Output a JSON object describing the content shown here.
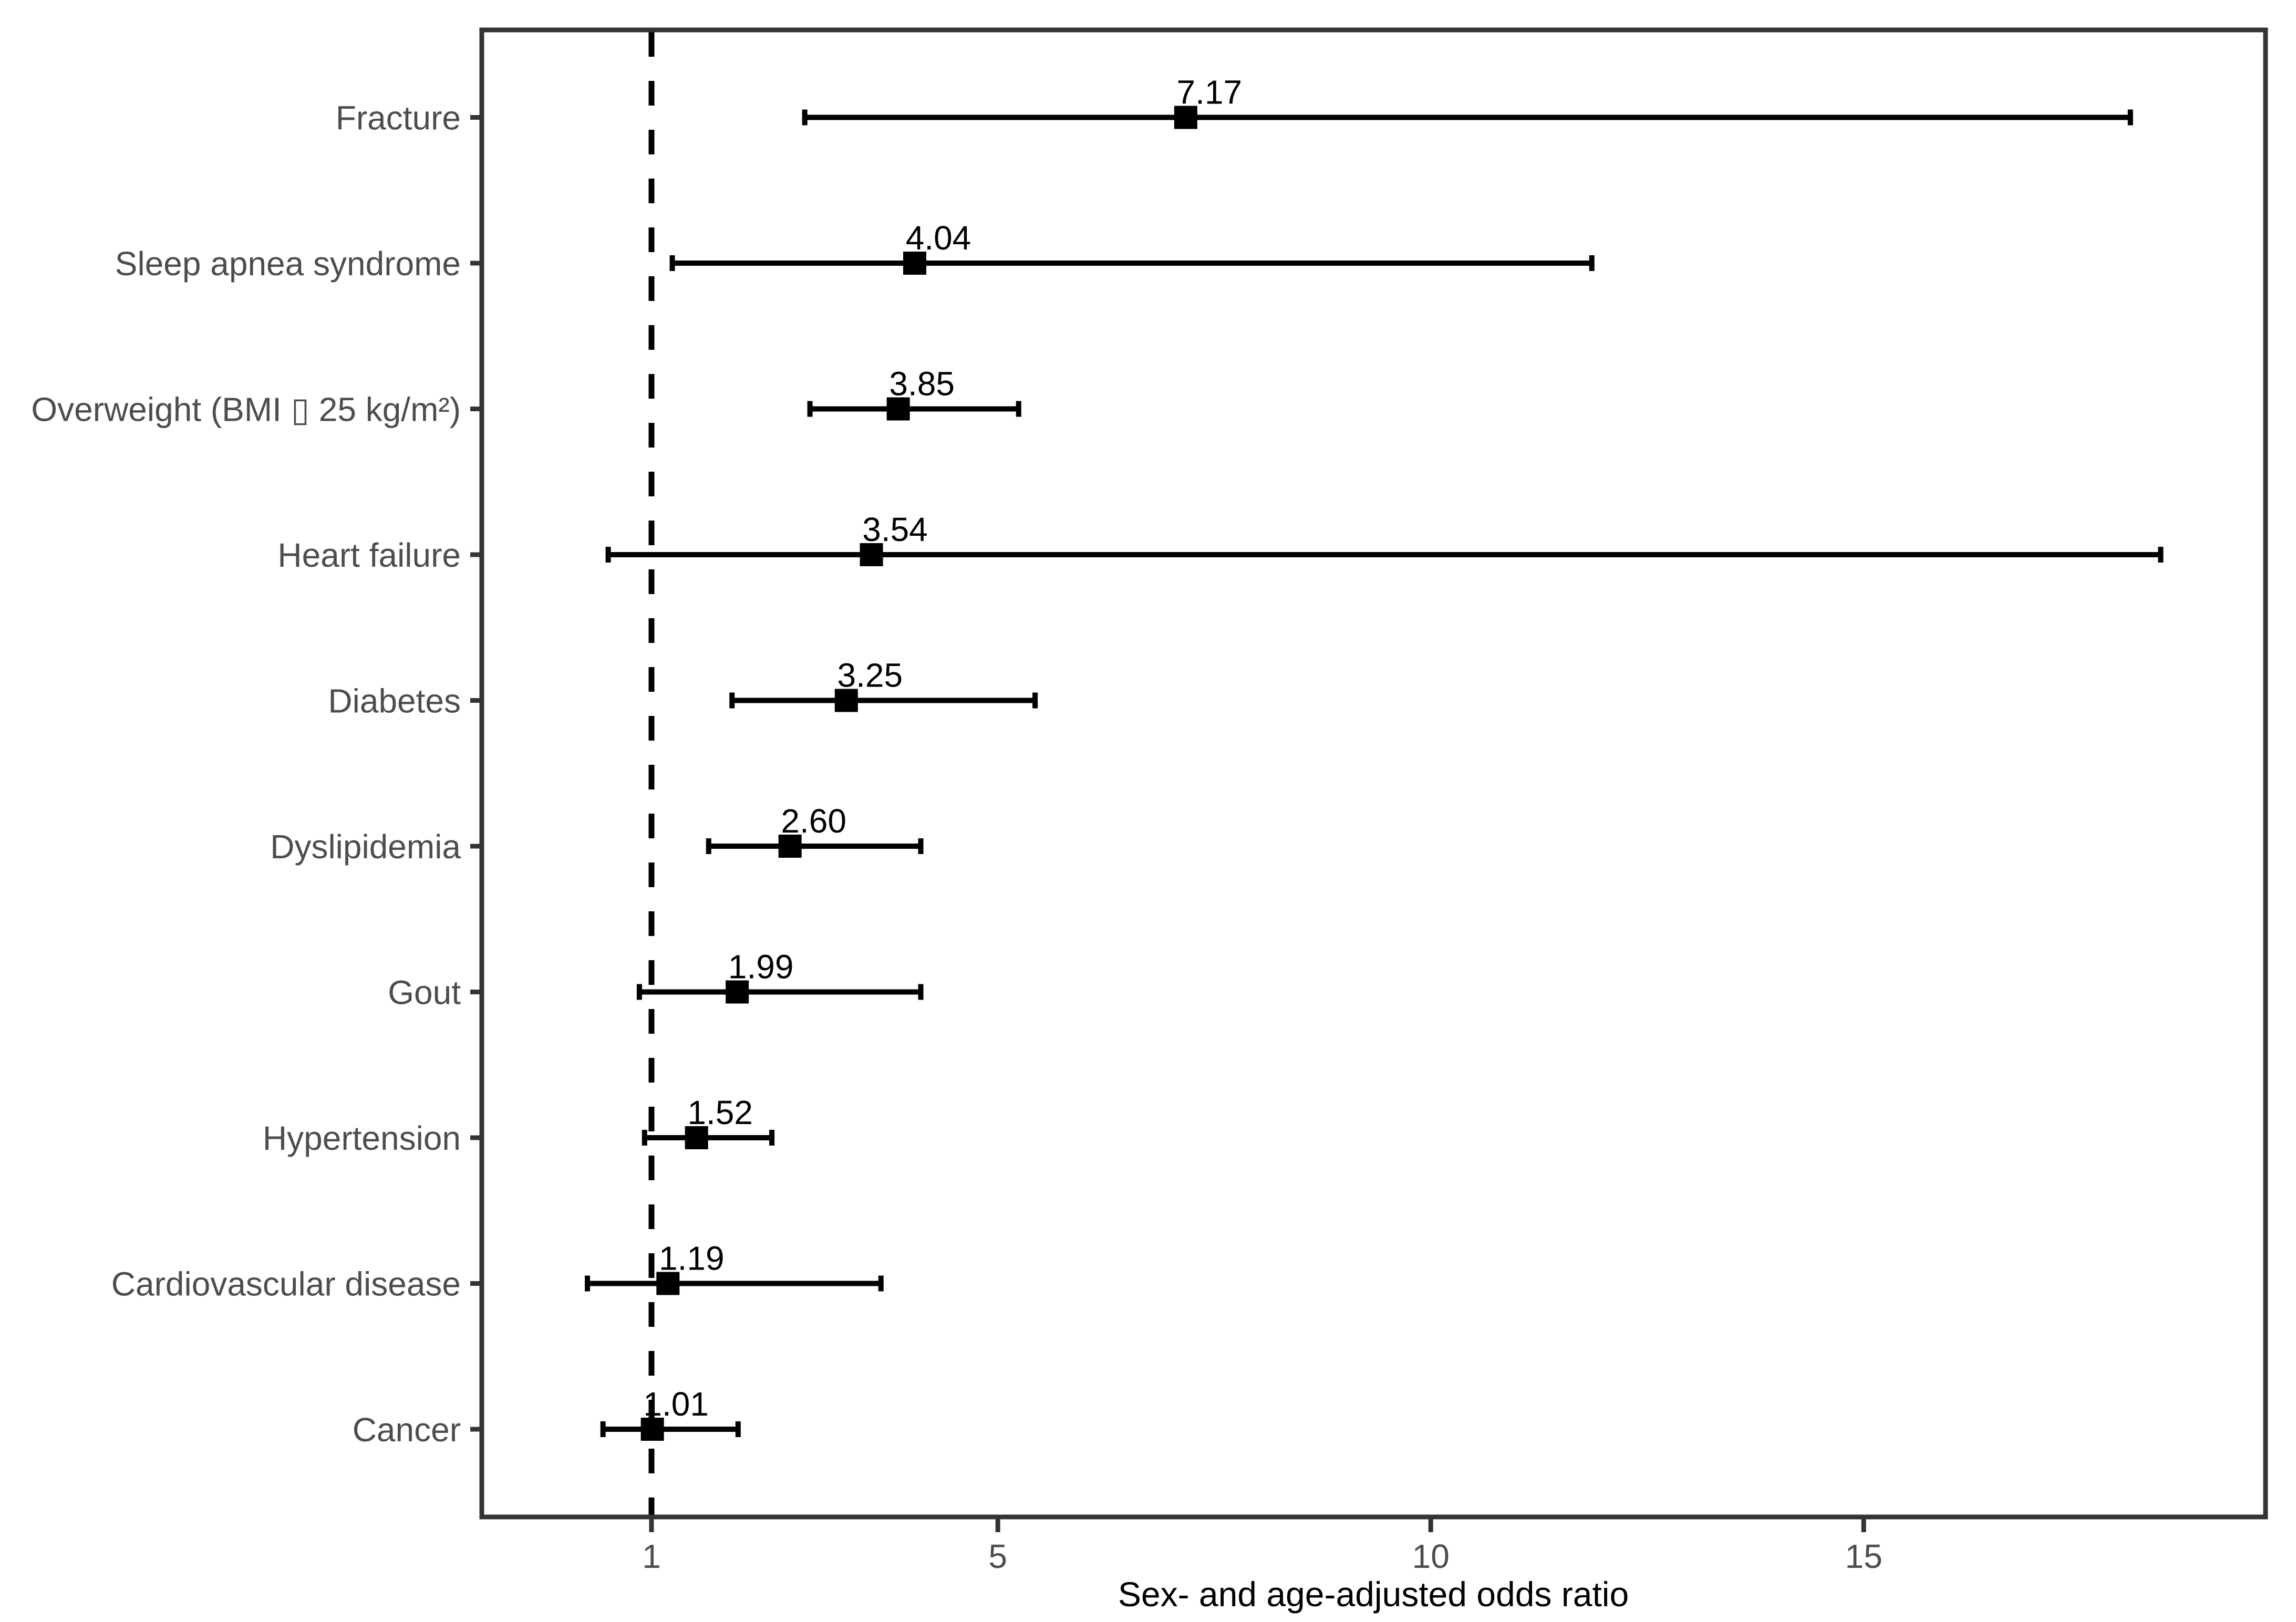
{
  "chart_data": {
    "type": "scatter",
    "subtype": "forest-plot",
    "title": "",
    "xlabel": "Sex- and age-adjusted odds ratio",
    "ylabel": "",
    "legend": "none",
    "grid": false,
    "xlim": [
      -0.9,
      19.6
    ],
    "reference_line_x": 1,
    "x_axis": {
      "ticks": [
        1,
        5,
        10,
        15
      ],
      "tick_labels": [
        "1",
        "5",
        "10",
        "15"
      ]
    },
    "rows": [
      {
        "label": "Fracture",
        "or": 7.17,
        "ci_low": 2.77,
        "ci_high": 18.08,
        "or_label": "7.17"
      },
      {
        "label": "Sleep apnea syndrome",
        "or": 4.04,
        "ci_low": 1.24,
        "ci_high": 11.86,
        "or_label": "4.04"
      },
      {
        "label": "Overweight (BMI ▯ 25 kg/m²)",
        "or": 3.85,
        "ci_low": 2.83,
        "ci_high": 5.24,
        "or_label": "3.85"
      },
      {
        "label": "Heart failure",
        "or": 3.54,
        "ci_low": 0.5,
        "ci_high": 18.43,
        "or_label": "3.54"
      },
      {
        "label": "Diabetes",
        "or": 3.25,
        "ci_low": 1.93,
        "ci_high": 5.43,
        "or_label": "3.25"
      },
      {
        "label": "Dyslipidemia",
        "or": 2.6,
        "ci_low": 1.66,
        "ci_high": 4.11,
        "or_label": "2.60"
      },
      {
        "label": "Gout",
        "or": 1.99,
        "ci_low": 0.86,
        "ci_high": 4.11,
        "or_label": "1.99"
      },
      {
        "label": "Hypertension",
        "or": 1.52,
        "ci_low": 0.92,
        "ci_high": 2.39,
        "or_label": "1.52"
      },
      {
        "label": "Cardiovascular disease",
        "or": 1.19,
        "ci_low": 0.26,
        "ci_high": 3.65,
        "or_label": "1.19"
      },
      {
        "label": "Cancer",
        "or": 1.01,
        "ci_low": 0.44,
        "ci_high": 2.0,
        "or_label": "1.01"
      }
    ],
    "colors": {
      "background": "#FFFFFF",
      "panel_border": "#343434",
      "axis_ticks": "#343434",
      "axis_text": "#4D4D4D",
      "data_black": "#000000"
    }
  }
}
